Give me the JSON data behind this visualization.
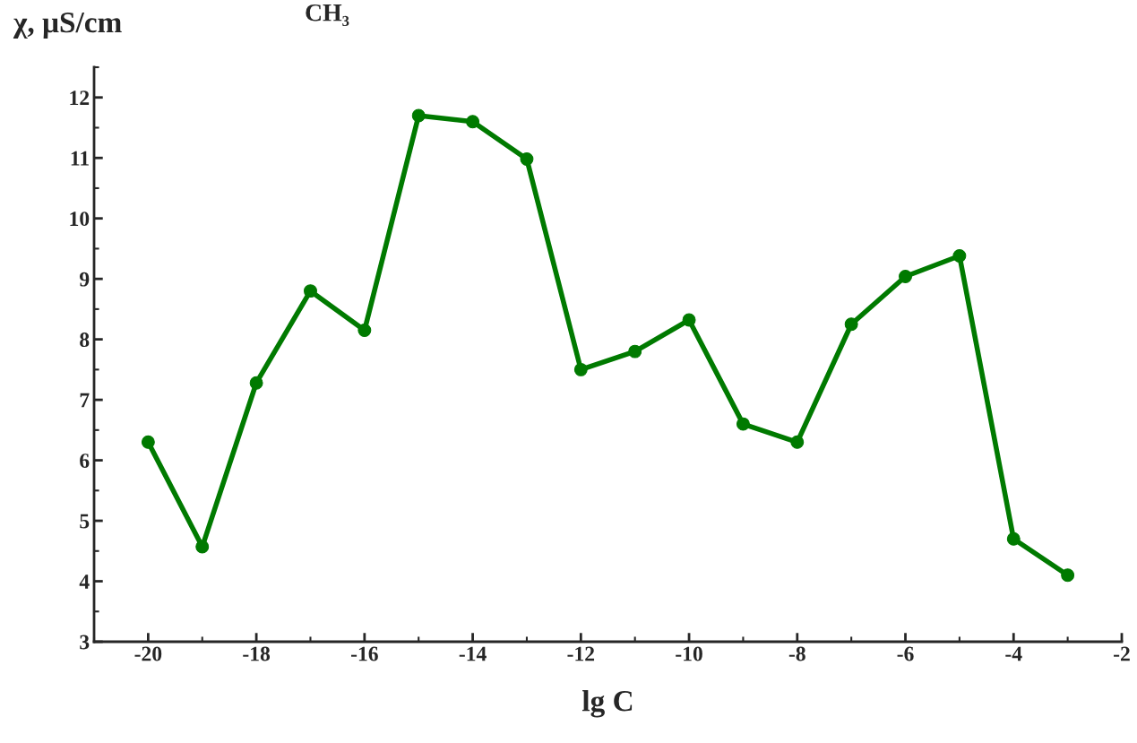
{
  "chart_data": {
    "type": "line",
    "title": "CH₃",
    "xlabel": "lg C",
    "ylabel": "χ, μS/cm",
    "x": [
      -20,
      -19,
      -18,
      -17,
      -16,
      -15,
      -14,
      -13,
      -12,
      -11,
      -10,
      -9,
      -8,
      -7,
      -6,
      -5,
      -4,
      -3
    ],
    "series": [
      {
        "color": "#007a00",
        "values": [
          6.3,
          4.57,
          7.28,
          8.8,
          8.15,
          11.7,
          11.6,
          10.98,
          7.5,
          7.8,
          8.32,
          6.6,
          6.3,
          8.25,
          9.04,
          9.38,
          4.7,
          4.1
        ]
      }
    ],
    "xlim": [
      -21,
      -2
    ],
    "xticks": [
      -20,
      -18,
      -16,
      -14,
      -12,
      -10,
      -8,
      -6,
      -4,
      -2
    ],
    "ylim": [
      3,
      12.5
    ],
    "yticks": [
      3,
      4,
      5,
      6,
      7,
      8,
      9,
      10,
      11,
      12
    ],
    "marker": "circle",
    "line_style": "solid",
    "grid": false,
    "legend": false
  }
}
